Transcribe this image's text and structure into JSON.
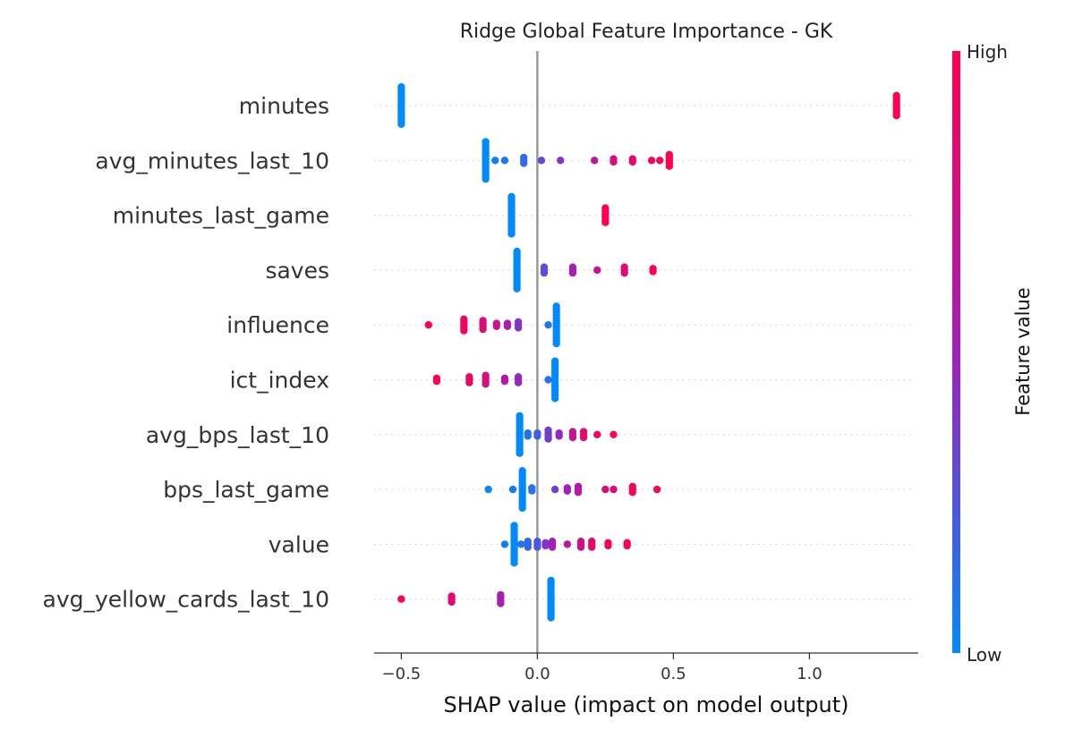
{
  "chart_data": {
    "type": "scatter",
    "title": "Ridge Global Feature Importance - GK",
    "xlabel": "SHAP value (impact on model output)",
    "ylabel": "",
    "xlim": [
      -0.6,
      1.4
    ],
    "xticks": [
      -0.5,
      0.0,
      0.5,
      1.0
    ],
    "xtick_labels": [
      "−0.5",
      "0.0",
      "0.5",
      "1.0"
    ],
    "zero_line": 0.0,
    "grid": "dotted row guides",
    "legend": "colorbar-right",
    "colorbar": {
      "label": "Feature value",
      "high_label": "High",
      "low_label": "Low",
      "low_color": "#008afb",
      "mid_color": "#a21fba",
      "high_color": "#ff0052"
    },
    "features": [
      {
        "name": "minutes",
        "points": [
          {
            "x": -0.5,
            "v": 0.0,
            "n": 14
          },
          {
            "x": 1.32,
            "v": 1.0,
            "n": 8
          }
        ]
      },
      {
        "name": "avg_minutes_last_10",
        "points": [
          {
            "x": -0.19,
            "v": 0.0,
            "n": 14
          },
          {
            "x": -0.155,
            "v": 0.05,
            "n": 1
          },
          {
            "x": -0.12,
            "v": 0.08,
            "n": 1
          },
          {
            "x": -0.05,
            "v": 0.15,
            "n": 3
          },
          {
            "x": 0.015,
            "v": 0.3,
            "n": 1
          },
          {
            "x": 0.085,
            "v": 0.4,
            "n": 1
          },
          {
            "x": 0.21,
            "v": 0.65,
            "n": 1
          },
          {
            "x": 0.28,
            "v": 0.8,
            "n": 2
          },
          {
            "x": 0.35,
            "v": 0.9,
            "n": 2
          },
          {
            "x": 0.42,
            "v": 0.95,
            "n": 1
          },
          {
            "x": 0.45,
            "v": 0.97,
            "n": 1
          },
          {
            "x": 0.485,
            "v": 1.0,
            "n": 5
          }
        ]
      },
      {
        "name": "minutes_last_game",
        "points": [
          {
            "x": -0.095,
            "v": 0.0,
            "n": 14
          },
          {
            "x": 0.25,
            "v": 1.0,
            "n": 6
          }
        ]
      },
      {
        "name": "saves",
        "points": [
          {
            "x": -0.075,
            "v": 0.0,
            "n": 14
          },
          {
            "x": 0.025,
            "v": 0.3,
            "n": 3
          },
          {
            "x": 0.13,
            "v": 0.55,
            "n": 3
          },
          {
            "x": 0.22,
            "v": 0.7,
            "n": 1
          },
          {
            "x": 0.32,
            "v": 0.85,
            "n": 3
          },
          {
            "x": 0.425,
            "v": 0.95,
            "n": 2
          }
        ]
      },
      {
        "name": "influence",
        "points": [
          {
            "x": 0.07,
            "v": 0.0,
            "n": 14
          },
          {
            "x": 0.04,
            "v": 0.1,
            "n": 1
          },
          {
            "x": -0.07,
            "v": 0.4,
            "n": 3
          },
          {
            "x": -0.11,
            "v": 0.55,
            "n": 2
          },
          {
            "x": -0.15,
            "v": 0.7,
            "n": 2
          },
          {
            "x": -0.2,
            "v": 0.82,
            "n": 4
          },
          {
            "x": -0.27,
            "v": 0.92,
            "n": 5
          },
          {
            "x": -0.4,
            "v": 1.0,
            "n": 1
          }
        ]
      },
      {
        "name": "ict_index",
        "points": [
          {
            "x": 0.065,
            "v": 0.0,
            "n": 14
          },
          {
            "x": 0.04,
            "v": 0.1,
            "n": 1
          },
          {
            "x": -0.07,
            "v": 0.45,
            "n": 3
          },
          {
            "x": -0.12,
            "v": 0.6,
            "n": 2
          },
          {
            "x": -0.19,
            "v": 0.78,
            "n": 4
          },
          {
            "x": -0.25,
            "v": 0.9,
            "n": 3
          },
          {
            "x": -0.37,
            "v": 1.0,
            "n": 2
          }
        ]
      },
      {
        "name": "avg_bps_last_10",
        "points": [
          {
            "x": -0.065,
            "v": 0.0,
            "n": 14
          },
          {
            "x": -0.035,
            "v": 0.1,
            "n": 2
          },
          {
            "x": 0.0,
            "v": 0.2,
            "n": 2
          },
          {
            "x": 0.04,
            "v": 0.35,
            "n": 4
          },
          {
            "x": 0.08,
            "v": 0.45,
            "n": 2
          },
          {
            "x": 0.13,
            "v": 0.7,
            "n": 3
          },
          {
            "x": 0.17,
            "v": 0.85,
            "n": 3
          },
          {
            "x": 0.22,
            "v": 0.95,
            "n": 1
          },
          {
            "x": 0.28,
            "v": 1.0,
            "n": 1
          }
        ]
      },
      {
        "name": "bps_last_game",
        "points": [
          {
            "x": -0.055,
            "v": 0.0,
            "n": 14
          },
          {
            "x": -0.18,
            "v": 0.02,
            "n": 1
          },
          {
            "x": -0.09,
            "v": 0.05,
            "n": 1
          },
          {
            "x": -0.02,
            "v": 0.1,
            "n": 2
          },
          {
            "x": 0.065,
            "v": 0.35,
            "n": 1
          },
          {
            "x": 0.11,
            "v": 0.5,
            "n": 2
          },
          {
            "x": 0.15,
            "v": 0.6,
            "n": 3
          },
          {
            "x": 0.25,
            "v": 0.8,
            "n": 1
          },
          {
            "x": 0.28,
            "v": 0.85,
            "n": 1
          },
          {
            "x": 0.35,
            "v": 0.95,
            "n": 3
          },
          {
            "x": 0.44,
            "v": 1.0,
            "n": 1
          }
        ]
      },
      {
        "name": "value",
        "points": [
          {
            "x": -0.085,
            "v": 0.0,
            "n": 14
          },
          {
            "x": -0.12,
            "v": 0.05,
            "n": 1
          },
          {
            "x": -0.06,
            "v": 0.1,
            "n": 1
          },
          {
            "x": -0.035,
            "v": 0.15,
            "n": 3
          },
          {
            "x": 0.0,
            "v": 0.25,
            "n": 3
          },
          {
            "x": 0.03,
            "v": 0.4,
            "n": 2
          },
          {
            "x": 0.055,
            "v": 0.5,
            "n": 3
          },
          {
            "x": 0.11,
            "v": 0.65,
            "n": 1
          },
          {
            "x": 0.16,
            "v": 0.75,
            "n": 3
          },
          {
            "x": 0.2,
            "v": 0.85,
            "n": 3
          },
          {
            "x": 0.26,
            "v": 0.92,
            "n": 2
          },
          {
            "x": 0.33,
            "v": 1.0,
            "n": 2
          }
        ]
      },
      {
        "name": "avg_yellow_cards_last_10",
        "points": [
          {
            "x": 0.05,
            "v": 0.0,
            "n": 14
          },
          {
            "x": -0.135,
            "v": 0.55,
            "n": 4
          },
          {
            "x": -0.315,
            "v": 0.85,
            "n": 3
          },
          {
            "x": -0.5,
            "v": 1.0,
            "n": 1
          }
        ]
      }
    ]
  }
}
